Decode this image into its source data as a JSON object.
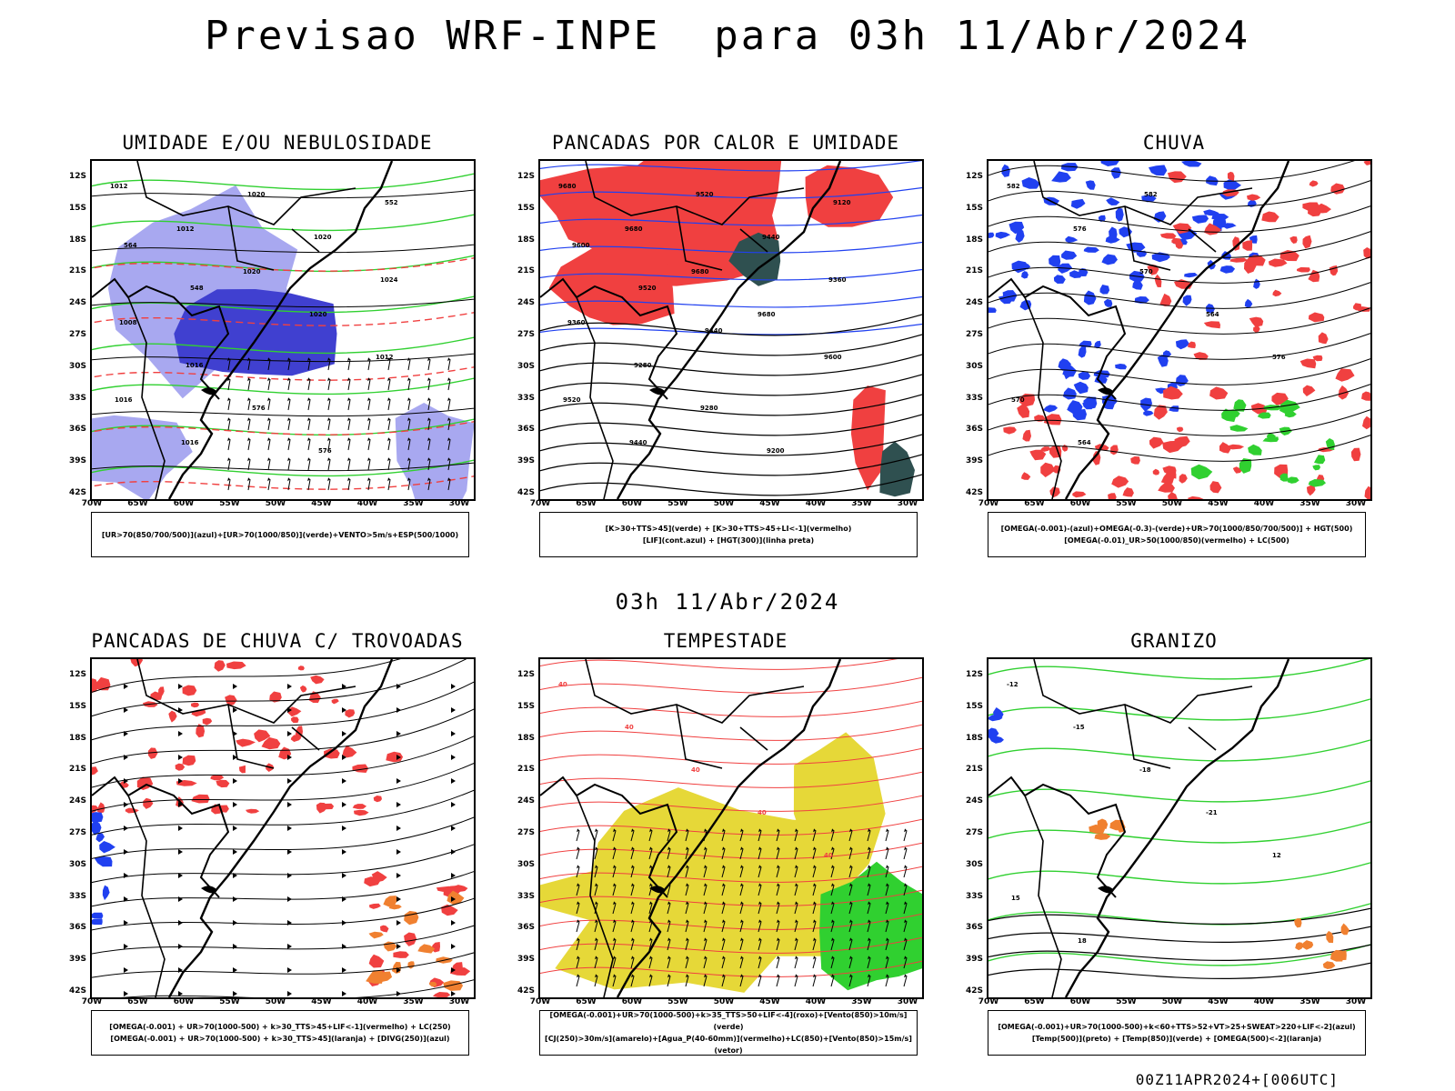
{
  "header": {
    "title": "Previsao WRF-INPE  para 03h 11/Abr/2024",
    "subtitle": "03h 11/Abr/2024",
    "footer": "00Z11APR2024+[006UTC]"
  },
  "axes": {
    "lat_labels": [
      "12S",
      "15S",
      "18S",
      "21S",
      "24S",
      "27S",
      "30S",
      "33S",
      "36S",
      "39S",
      "42S"
    ],
    "lon_labels": [
      "70W",
      "65W",
      "60W",
      "55W",
      "50W",
      "45W",
      "40W",
      "35W",
      "30W"
    ]
  },
  "colors": {
    "red": "#f04040",
    "blue": "#2040f0",
    "green": "#30d030",
    "lavender": "#a8a8f0",
    "darkblue": "#4040d0",
    "yellow": "#e6d838",
    "darkgreen": "#2f5050",
    "orange": "#f08030"
  },
  "panels": [
    {
      "title": "UMIDADE E/OU NEBULOSIDADE",
      "legend": [
        "[UR>70(850/700/500)](azul)+[UR>70(1000/850)](verde)+VENTO>5m/s+ESP(500/1000)"
      ],
      "contour_labels": [
        "1012",
        "1012",
        "1020",
        "1020",
        "1012",
        "1016",
        "1016",
        "1020",
        "1020",
        "1024",
        "1008",
        "1016",
        "576",
        "576",
        "552",
        "564",
        "548"
      ]
    },
    {
      "title": "PANCADAS POR CALOR E UMIDADE",
      "legend": [
        "[K>30+TTS>45](verde) + [K>30+TTS>45+LI<-1](vermelho)",
        "[LIF](cont.azul) + [HGT(300)](linha preta)"
      ],
      "contour_labels": [
        "9680",
        "9680",
        "9680",
        "9680",
        "9600",
        "9520",
        "9440",
        "9520",
        "9440",
        "9360",
        "9360",
        "9280",
        "9280",
        "9200",
        "9120",
        "9600",
        "9520",
        "9440"
      ]
    },
    {
      "title": "CHUVA",
      "legend": [
        "[OMEGA(-0.001)-(azul)+OMEGA(-0.3)-(verde)+UR>70(1000/850/700/500)] + HGT(500)",
        "[OMEGA(-0.01)_UR>50(1000/850)(vermelho) + LC(500)"
      ],
      "contour_labels": [
        "582",
        "576",
        "570",
        "564",
        "576",
        "570",
        "564",
        "582"
      ]
    },
    {
      "title": "PANCADAS DE CHUVA C/ TROVOADAS",
      "legend": [
        "[OMEGA(-0.001) + UR>70(1000-500) + k>30_TTS>45+LIF<-1](vermelho) + LC(250)",
        "[OMEGA(-0.001) + UR>70(1000-500) + k>30_TTS>45](laranja) + [DIVG(250)](azul)"
      ],
      "contour_labels": []
    },
    {
      "title": "TEMPESTADE",
      "legend": [
        "[OMEGA(-0.001)+UR>70(1000-500)+k>35_TTS>50+LIF<-4](roxo)+[Vento(850)>10m/s](verde)",
        "[CJ(250)>30m/s](amarelo)+[Agua_P(40-60mm)](vermelho)+LC(850)+[Vento(850)>15m/s](vetor)"
      ],
      "contour_labels": [
        "40",
        "40",
        "40",
        "40",
        "40"
      ]
    },
    {
      "title": "GRANIZO",
      "legend": [
        "[OMEGA(-0.001)+UR>70(1000-500)+k<60+TTS>52+VT>25+SWEAT>220+LIF<-2](azul)",
        "[Temp(500)](preto) + [Temp(850)](verde) + [OMEGA(500)<-2](laranja)"
      ],
      "contour_labels": [
        "-12",
        "-15",
        "-18",
        "-21",
        "12",
        "15",
        "18"
      ]
    }
  ]
}
